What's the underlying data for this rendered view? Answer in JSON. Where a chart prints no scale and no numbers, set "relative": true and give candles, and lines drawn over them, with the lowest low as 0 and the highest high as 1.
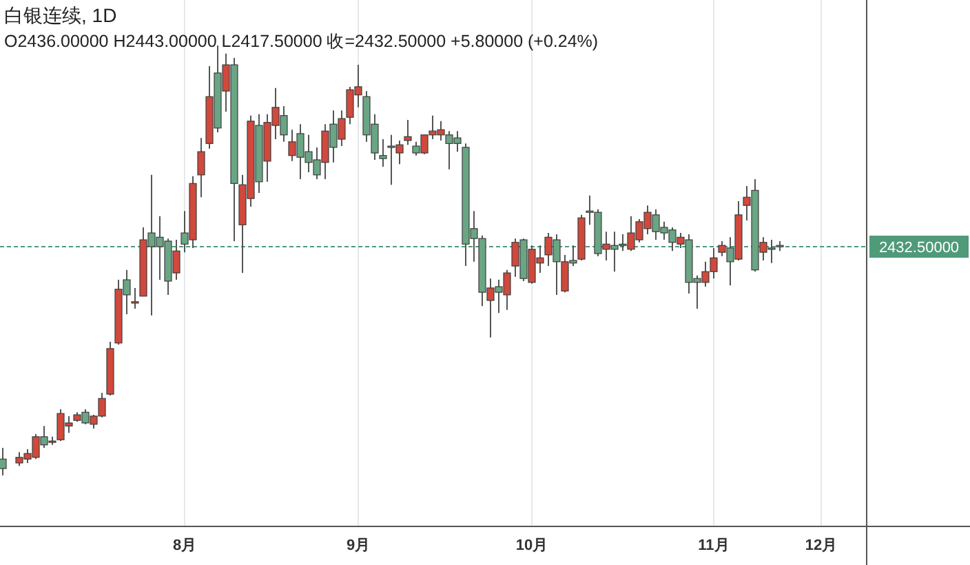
{
  "chart_data": {
    "type": "candlestick",
    "title": "白银连续, 1D",
    "subtitle": "O2436.00000 H2443.00000 L2417.50000 收=2432.50000 +5.80000 (+0.24%)",
    "relative": true,
    "grid": "x",
    "tick_labels": "x",
    "categories": [
      null,
      null,
      null,
      null,
      null,
      null,
      null,
      null,
      null,
      null,
      null,
      null,
      null,
      null,
      null,
      null,
      null,
      null,
      null,
      null,
      null,
      null,
      "8月",
      null,
      null,
      null,
      null,
      null,
      null,
      null,
      null,
      null,
      null,
      null,
      null,
      null,
      null,
      null,
      null,
      null,
      null,
      null,
      null,
      "9月",
      null,
      null,
      null,
      null,
      null,
      null,
      null,
      null,
      null,
      null,
      null,
      null,
      null,
      null,
      null,
      null,
      null,
      null,
      null,
      null,
      "10月",
      null,
      null,
      null,
      null,
      null,
      null,
      null,
      null,
      null,
      null,
      null,
      null,
      null,
      null,
      null,
      null,
      null,
      null,
      null,
      null,
      null,
      "11月",
      null,
      null,
      null,
      null,
      null,
      null,
      null,
      null,
      null,
      null,
      null,
      null,
      "12月",
      null,
      null,
      null,
      null,
      null
    ],
    "ohlc": [
      [
        0.038,
        0.064,
        0,
        0.016
      ],
      null,
      [
        0.029,
        0.054,
        0.022,
        0.042
      ],
      [
        0.038,
        0.061,
        0.029,
        0.051
      ],
      [
        0.042,
        0.096,
        0.038,
        0.09
      ],
      [
        0.09,
        0.115,
        0.064,
        0.071
      ],
      [
        0.077,
        0.09,
        0.071,
        0.08
      ],
      [
        0.083,
        0.154,
        0.08,
        0.144
      ],
      [
        0.115,
        0.138,
        0.099,
        0.122
      ],
      [
        0.128,
        0.147,
        0.125,
        0.141
      ],
      [
        0.147,
        0.154,
        0.119,
        0.122
      ],
      [
        0.119,
        0.141,
        0.109,
        0.138
      ],
      [
        0.138,
        0.192,
        0.135,
        0.179
      ],
      [
        0.189,
        0.311,
        0.186,
        0.295
      ],
      [
        0.308,
        0.455,
        0.304,
        0.433
      ],
      [
        0.455,
        0.478,
        0.375,
        0.42
      ],
      [
        0.401,
        0.436,
        0.388,
        0.404
      ],
      [
        0.417,
        0.577,
        0.417,
        0.548
      ],
      [
        0.564,
        0.699,
        0.372,
        0.532
      ],
      [
        0.554,
        0.603,
        0.455,
        0.532
      ],
      [
        0.545,
        0.551,
        0.42,
        0.452
      ],
      [
        0.471,
        0.548,
        0.455,
        0.522
      ],
      [
        0.564,
        0.615,
        0.519,
        0.538
      ],
      [
        0.548,
        0.696,
        0.529,
        0.679
      ],
      [
        0.699,
        0.785,
        0.647,
        0.753
      ],
      [
        0.772,
        0.952,
        0.76,
        0.881
      ],
      [
        0.936,
        1,
        0.798,
        0.808
      ],
      [
        0.894,
        0.981,
        0.846,
        0.955
      ],
      [
        0.955,
        0.971,
        0.545,
        0.679
      ],
      [
        0.583,
        0.699,
        0.471,
        0.676
      ],
      [
        0.644,
        0.837,
        0.625,
        0.824
      ],
      [
        0.814,
        0.84,
        0.657,
        0.683
      ],
      [
        0.731,
        0.84,
        0.683,
        0.821
      ],
      [
        0.814,
        0.901,
        0.782,
        0.856
      ],
      [
        0.837,
        0.859,
        0.776,
        0.792
      ],
      [
        0.744,
        0.804,
        0.731,
        0.776
      ],
      [
        0.795,
        0.817,
        0.689,
        0.74
      ],
      [
        0.753,
        0.792,
        0.705,
        0.728
      ],
      [
        0.734,
        0.763,
        0.689,
        0.699
      ],
      [
        0.728,
        0.817,
        0.689,
        0.801
      ],
      [
        0.817,
        0.849,
        0.728,
        0.763
      ],
      [
        0.782,
        0.849,
        0.766,
        0.83
      ],
      [
        0.833,
        0.904,
        0.817,
        0.897
      ],
      [
        0.885,
        0.955,
        0.856,
        0.904
      ],
      [
        0.881,
        0.894,
        0.776,
        0.792
      ],
      [
        0.817,
        0.84,
        0.734,
        0.75
      ],
      [
        0.744,
        0.782,
        0.718,
        0.737
      ],
      [
        0.766,
        0.792,
        0.676,
        0.763
      ],
      [
        0.75,
        0.779,
        0.724,
        0.769
      ],
      [
        0.779,
        0.827,
        0.769,
        0.788
      ],
      [
        0.766,
        0.776,
        0.744,
        0.75
      ],
      [
        0.75,
        0.792,
        0.747,
        0.792
      ],
      [
        0.792,
        0.837,
        0.782,
        0.801
      ],
      [
        0.792,
        0.824,
        0.779,
        0.804
      ],
      [
        0.792,
        0.801,
        0.712,
        0.772
      ],
      [
        0.785,
        0.801,
        0.753,
        0.772
      ],
      [
        0.763,
        0.772,
        0.487,
        0.538
      ],
      [
        0.574,
        0.615,
        0.497,
        0.551
      ],
      [
        0.551,
        0.558,
        0.394,
        0.426
      ],
      [
        0.407,
        0.458,
        0.321,
        0.436
      ],
      [
        0.439,
        0.455,
        0.378,
        0.426
      ],
      [
        0.42,
        0.478,
        0.385,
        0.471
      ],
      [
        0.487,
        0.551,
        0.462,
        0.542
      ],
      [
        0.548,
        0.551,
        0.452,
        0.458
      ],
      [
        0.449,
        0.535,
        0.446,
        0.526
      ],
      [
        0.494,
        0.535,
        0.471,
        0.506
      ],
      [
        0.513,
        0.564,
        0.487,
        0.554
      ],
      [
        0.548,
        0.561,
        0.42,
        0.497
      ],
      [
        0.429,
        0.513,
        0.426,
        0.497
      ],
      [
        0.5,
        0.535,
        0.487,
        0.494
      ],
      [
        0.503,
        0.606,
        0.5,
        0.599
      ],
      [
        0.615,
        0.651,
        0.583,
        0.612
      ],
      [
        0.612,
        0.619,
        0.51,
        0.516
      ],
      [
        0.526,
        0.567,
        0.5,
        0.538
      ],
      [
        0.535,
        0.567,
        0.474,
        0.526
      ],
      [
        0.538,
        0.561,
        0.522,
        0.535
      ],
      [
        0.526,
        0.603,
        0.522,
        0.564
      ],
      [
        0.548,
        0.596,
        0.542,
        0.59
      ],
      [
        0.574,
        0.628,
        0.561,
        0.612
      ],
      [
        0.606,
        0.619,
        0.548,
        0.567
      ],
      [
        0.577,
        0.59,
        0.548,
        0.564
      ],
      [
        0.571,
        0.577,
        0.522,
        0.542
      ],
      [
        0.538,
        0.564,
        0.529,
        0.554
      ],
      [
        0.548,
        0.561,
        0.423,
        0.449
      ],
      [
        0.458,
        0.465,
        0.388,
        0.449
      ],
      [
        0.449,
        0.497,
        0.439,
        0.474
      ],
      [
        0.474,
        0.529,
        0.458,
        0.506
      ],
      [
        0.519,
        0.545,
        0.51,
        0.535
      ],
      [
        0.529,
        0.554,
        0.442,
        0.497
      ],
      [
        0.503,
        0.638,
        0.5,
        0.606
      ],
      [
        0.628,
        0.673,
        0.593,
        0.647
      ],
      [
        0.663,
        0.689,
        0.474,
        0.478
      ],
      [
        0.519,
        0.554,
        0.5,
        0.542
      ],
      [
        0.529,
        0.548,
        0.494,
        0.526
      ],
      [
        0.535,
        0.545,
        0.522,
        0.532
      ],
      null,
      null,
      null,
      null,
      null,
      null,
      null,
      null,
      null,
      null
    ],
    "colors": [
      "#6aa584",
      null,
      "#d0493c",
      "#d0493c",
      "#d0493c",
      "#6aa584",
      "#d0493c",
      "#d0493c",
      "#d0493c",
      "#d0493c",
      "#6aa584",
      "#d0493c",
      "#d0493c",
      "#d0493c",
      "#d0493c",
      "#6aa584",
      "#d0493c",
      "#d0493c",
      "#6aa584",
      "#6aa584",
      "#6aa584",
      "#d0493c",
      "#6aa584",
      "#d0493c",
      "#d0493c",
      "#d0493c",
      "#6aa584",
      "#d0493c",
      "#6aa584",
      "#d0493c",
      "#d0493c",
      "#6aa584",
      "#d0493c",
      "#d0493c",
      "#6aa584",
      "#d0493c",
      "#6aa584",
      "#6aa584",
      "#6aa584",
      "#d0493c",
      "#6aa584",
      "#d0493c",
      "#d0493c",
      "#d0493c",
      "#6aa584",
      "#6aa584",
      "#6aa584",
      "#6aa584",
      "#d0493c",
      "#d0493c",
      "#6aa584",
      "#d0493c",
      "#d0493c",
      "#d0493c",
      "#6aa584",
      "#6aa584",
      "#6aa584",
      "#6aa584",
      "#6aa584",
      "#d0493c",
      "#6aa584",
      "#d0493c",
      "#d0493c",
      "#6aa584",
      "#d0493c",
      "#d0493c",
      "#d0493c",
      "#6aa584",
      "#d0493c",
      "#6aa584",
      "#d0493c",
      "#6aa584",
      "#6aa584",
      "#d0493c",
      "#6aa584",
      "#6aa584",
      "#d0493c",
      "#d0493c",
      "#d0493c",
      "#6aa584",
      "#6aa584",
      "#6aa584",
      "#d0493c",
      "#6aa584",
      "#6aa584",
      "#d0493c",
      "#d0493c",
      "#d0493c",
      "#6aa584",
      "#d0493c",
      "#d0493c",
      "#6aa584",
      "#d0493c",
      "#6aa584",
      "#6aa584",
      null,
      null,
      null,
      null,
      null,
      null,
      null,
      null,
      null,
      null
    ],
    "ref_lines": [
      {
        "axis": "y",
        "value": 0.532,
        "color": "#4f9a78",
        "line_style": "dashed"
      }
    ],
    "annotations": [
      "2432.50000"
    ]
  }
}
